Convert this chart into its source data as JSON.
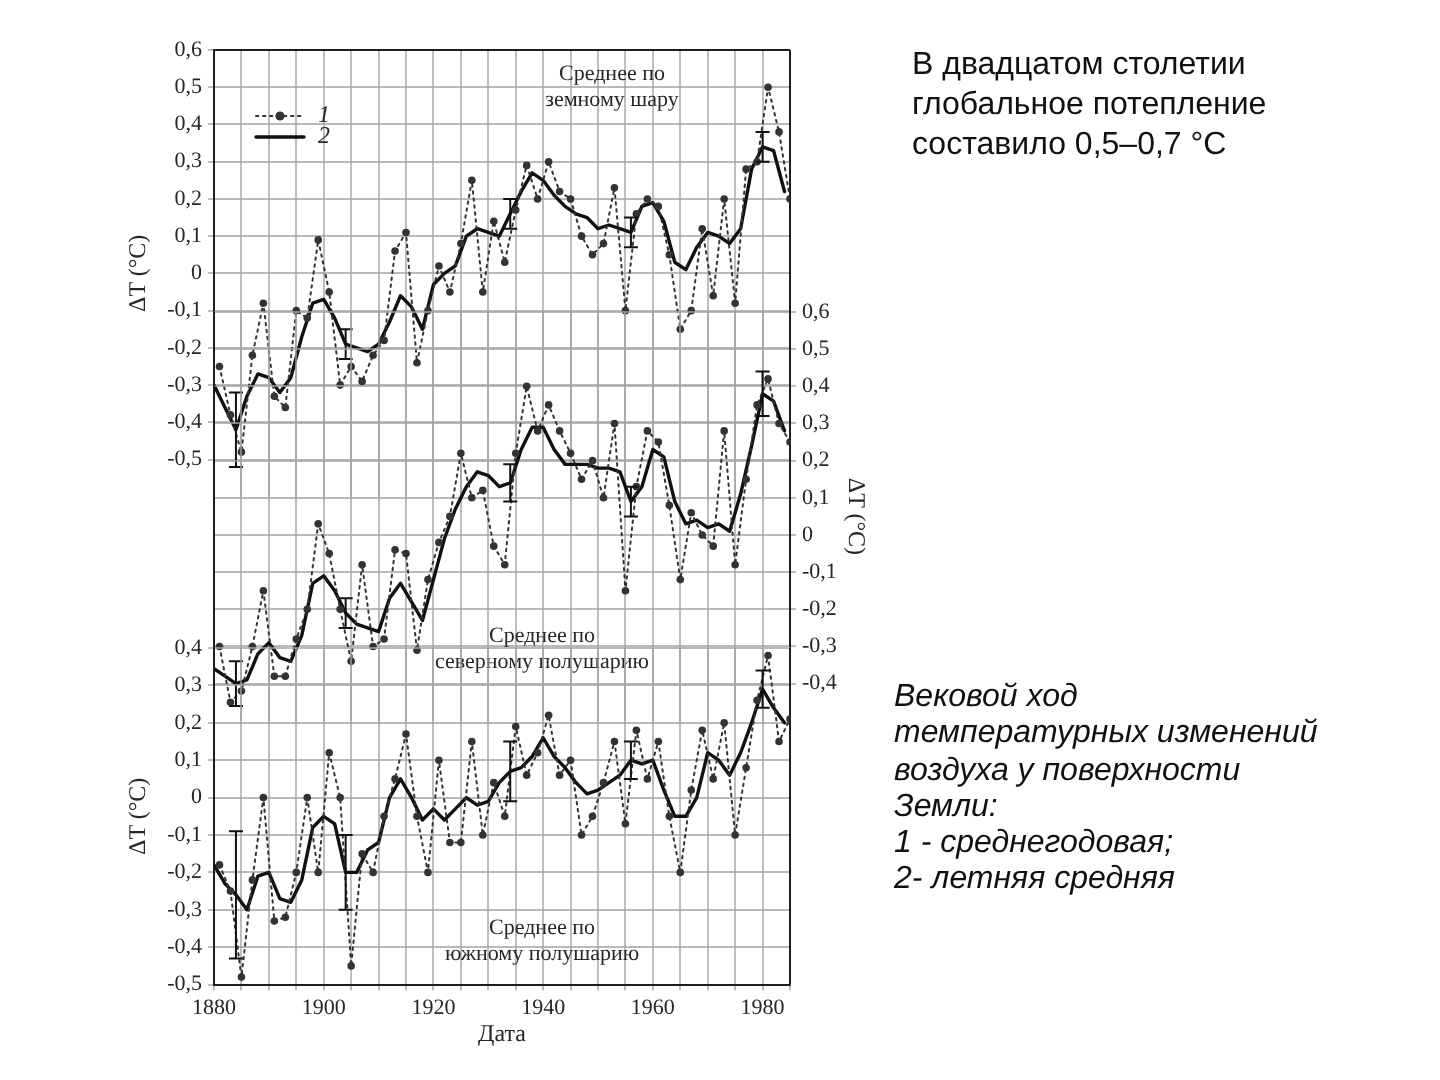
{
  "chart_data": [
    {
      "type": "line",
      "title": "Среднее по\nземному шару",
      "ylabel": "ΔT (°C)",
      "legend": "top left",
      "grid": true,
      "tick_labels": "y",
      "xlim": [
        1880,
        1985
      ],
      "xticks": [
        1880,
        {
          "value": 1885,
          "label": null
        },
        {
          "value": 1890,
          "label": null
        },
        {
          "value": 1895,
          "label": null
        },
        1900,
        {
          "value": 1905,
          "label": null
        },
        {
          "value": 1910,
          "label": null
        },
        {
          "value": 1915,
          "label": null
        },
        1920,
        {
          "value": 1925,
          "label": null
        },
        {
          "value": 1930,
          "label": null
        },
        {
          "value": 1935,
          "label": null
        },
        1940,
        {
          "value": 1945,
          "label": null
        },
        {
          "value": 1950,
          "label": null
        },
        {
          "value": 1955,
          "label": null
        },
        1960,
        {
          "value": 1965,
          "label": null
        },
        {
          "value": 1970,
          "label": null
        },
        {
          "value": 1975,
          "label": null
        },
        1980,
        {
          "value": 1985,
          "label": null
        }
      ],
      "ylim": [
        -0.6,
        0.6
      ],
      "yticks": [
        {
          "value": 0.6,
          "label": "0,6"
        },
        {
          "value": 0.5,
          "label": "0,5"
        },
        {
          "value": 0.4,
          "label": "0,4"
        },
        {
          "value": 0.3,
          "label": "0,3"
        },
        {
          "value": 0.2,
          "label": "0,2"
        },
        {
          "value": 0.1,
          "label": "0,1"
        },
        0,
        {
          "value": -0.1,
          "label": "-0,1"
        },
        {
          "value": -0.2,
          "label": "-0,2"
        },
        {
          "value": -0.3,
          "label": "-0,3"
        },
        {
          "value": -0.4,
          "label": "-0,4"
        },
        {
          "value": -0.5,
          "label": "-0,5"
        }
      ],
      "annotations": [
        "В двадцатом столетии глобальное потепление составило 0,5–0,7 °C",
        "Вековой ход\nтемпературных изменений\nвоздуха у поверхности\nЗемли:\n1 - среднегодовая;\n2- летняя средняя"
      ],
      "series": [
        {
          "name": "1",
          "color": "#333333",
          "marker": "circle",
          "line_style": "dotted",
          "x": [
            1881,
            1883,
            1885,
            1887,
            1889,
            1891,
            1893,
            1895,
            1897,
            1899,
            1901,
            1903,
            1905,
            1907,
            1909,
            1911,
            1913,
            1915,
            1917,
            1919,
            1921,
            1923,
            1925,
            1927,
            1929,
            1931,
            1933,
            1935,
            1937,
            1939,
            1941,
            1943,
            1945,
            1947,
            1949,
            1951,
            1953,
            1955,
            1957,
            1959,
            1961,
            1963,
            1965,
            1967,
            1969,
            1971,
            1973,
            1975,
            1977,
            1979,
            1981,
            1983,
            1985
          ],
          "values": [
            -0.25,
            -0.38,
            -0.48,
            -0.22,
            -0.08,
            -0.33,
            -0.36,
            -0.1,
            -0.12,
            0.09,
            -0.05,
            -0.3,
            -0.25,
            -0.29,
            -0.22,
            -0.18,
            0.06,
            0.11,
            -0.24,
            -0.1,
            0.02,
            -0.05,
            0.08,
            0.25,
            -0.05,
            0.14,
            0.03,
            0.17,
            0.29,
            0.2,
            0.3,
            0.22,
            0.2,
            0.1,
            0.05,
            0.08,
            0.23,
            -0.1,
            0.16,
            0.2,
            0.18,
            0.05,
            -0.15,
            -0.1,
            0.12,
            -0.06,
            0.2,
            -0.08,
            0.28,
            0.3,
            0.5,
            0.38,
            0.2
          ]
        },
        {
          "name": "2",
          "color": "#111111",
          "marker": "none",
          "line_style": "solid",
          "x": [
            1880,
            1882,
            1884,
            1886,
            1888,
            1890,
            1892,
            1894,
            1896,
            1898,
            1900,
            1902,
            1904,
            1906,
            1908,
            1910,
            1912,
            1914,
            1916,
            1918,
            1920,
            1922,
            1924,
            1926,
            1928,
            1930,
            1932,
            1934,
            1936,
            1938,
            1940,
            1942,
            1944,
            1946,
            1948,
            1950,
            1952,
            1954,
            1956,
            1958,
            1960,
            1962,
            1964,
            1966,
            1968,
            1970,
            1972,
            1974,
            1976,
            1978,
            1980,
            1982,
            1984
          ],
          "values": [
            -0.3,
            -0.36,
            -0.42,
            -0.33,
            -0.27,
            -0.28,
            -0.32,
            -0.28,
            -0.17,
            -0.08,
            -0.07,
            -0.12,
            -0.19,
            -0.2,
            -0.21,
            -0.19,
            -0.13,
            -0.06,
            -0.09,
            -0.15,
            -0.03,
            0.0,
            0.02,
            0.1,
            0.12,
            0.11,
            0.1,
            0.16,
            0.22,
            0.27,
            0.25,
            0.21,
            0.18,
            0.16,
            0.15,
            0.12,
            0.13,
            0.12,
            0.11,
            0.18,
            0.19,
            0.14,
            0.03,
            0.01,
            0.07,
            0.11,
            0.1,
            0.08,
            0.12,
            0.28,
            0.34,
            0.33,
            0.22
          ],
          "errors": [
            null,
            null,
            0.1,
            null,
            null,
            null,
            null,
            null,
            null,
            null,
            null,
            null,
            0.04,
            null,
            null,
            null,
            null,
            null,
            null,
            null,
            null,
            null,
            null,
            null,
            null,
            null,
            null,
            0.04,
            null,
            null,
            null,
            null,
            null,
            null,
            null,
            null,
            null,
            null,
            0.04,
            null,
            null,
            null,
            null,
            null,
            null,
            null,
            null,
            null,
            null,
            null,
            0.04,
            null,
            null
          ]
        }
      ]
    },
    {
      "type": "line",
      "title": "Среднее по\nсеверному полушарию",
      "y2label": "ΔT (°C)",
      "grid": true,
      "tick_labels": "y",
      "xlim": [
        1880,
        1985
      ],
      "xticks": [
        1880,
        {
          "value": 1885,
          "label": null
        },
        {
          "value": 1890,
          "label": null
        },
        {
          "value": 1895,
          "label": null
        },
        1900,
        {
          "value": 1905,
          "label": null
        },
        {
          "value": 1910,
          "label": null
        },
        {
          "value": 1915,
          "label": null
        },
        1920,
        {
          "value": 1925,
          "label": null
        },
        {
          "value": 1930,
          "label": null
        },
        {
          "value": 1935,
          "label": null
        },
        1940,
        {
          "value": 1945,
          "label": null
        },
        {
          "value": 1950,
          "label": null
        },
        {
          "value": 1955,
          "label": null
        },
        1960,
        {
          "value": 1965,
          "label": null
        },
        {
          "value": 1970,
          "label": null
        },
        {
          "value": 1975,
          "label": null
        },
        1980,
        {
          "value": 1985,
          "label": null
        }
      ],
      "y2lim": [
        -0.5,
        0.6
      ],
      "y2ticks": [
        {
          "value": 0.6,
          "label": "0,6"
        },
        {
          "value": 0.5,
          "label": "0,5"
        },
        {
          "value": 0.4,
          "label": "0,4"
        },
        {
          "value": 0.3,
          "label": "0,3"
        },
        {
          "value": 0.2,
          "label": "0,2"
        },
        {
          "value": 0.1,
          "label": "0,1"
        },
        0,
        {
          "value": -0.1,
          "label": "-0,1"
        },
        {
          "value": -0.2,
          "label": "-0,2"
        },
        {
          "value": -0.3,
          "label": "-0,3"
        },
        {
          "value": -0.4,
          "label": "-0,4"
        }
      ],
      "series": [
        {
          "color": "#333333",
          "marker": "circle",
          "line_style": "dotted",
          "axis": "y2",
          "x": [
            1881,
            1883,
            1885,
            1887,
            1889,
            1891,
            1893,
            1895,
            1897,
            1899,
            1901,
            1903,
            1905,
            1907,
            1909,
            1911,
            1913,
            1915,
            1917,
            1919,
            1921,
            1923,
            1925,
            1927,
            1929,
            1931,
            1933,
            1935,
            1937,
            1939,
            1941,
            1943,
            1945,
            1947,
            1949,
            1951,
            1953,
            1955,
            1957,
            1959,
            1961,
            1963,
            1965,
            1967,
            1969,
            1971,
            1973,
            1975,
            1977,
            1979,
            1981,
            1983,
            1985
          ],
          "values": [
            -0.3,
            -0.45,
            -0.42,
            -0.3,
            -0.15,
            -0.38,
            -0.38,
            -0.28,
            -0.2,
            0.03,
            -0.05,
            -0.2,
            -0.34,
            -0.08,
            -0.3,
            -0.28,
            -0.04,
            -0.05,
            -0.31,
            -0.12,
            -0.02,
            0.05,
            0.22,
            0.1,
            0.12,
            -0.03,
            -0.08,
            0.22,
            0.4,
            0.28,
            0.35,
            0.28,
            0.22,
            0.15,
            0.2,
            0.1,
            0.3,
            -0.15,
            0.13,
            0.28,
            0.25,
            0.08,
            -0.12,
            0.06,
            0.0,
            -0.03,
            0.28,
            -0.08,
            0.15,
            0.35,
            0.42,
            0.3,
            0.25
          ]
        },
        {
          "color": "#111111",
          "marker": "none",
          "line_style": "solid",
          "axis": "y2",
          "x": [
            1880,
            1882,
            1884,
            1886,
            1888,
            1890,
            1892,
            1894,
            1896,
            1898,
            1900,
            1902,
            1904,
            1906,
            1908,
            1910,
            1912,
            1914,
            1916,
            1918,
            1920,
            1922,
            1924,
            1926,
            1928,
            1930,
            1932,
            1934,
            1936,
            1938,
            1940,
            1942,
            1944,
            1946,
            1948,
            1950,
            1952,
            1954,
            1956,
            1958,
            1960,
            1962,
            1964,
            1966,
            1968,
            1970,
            1972,
            1974,
            1976,
            1978,
            1980,
            1982,
            1984
          ],
          "values": [
            -0.36,
            -0.38,
            -0.4,
            -0.39,
            -0.32,
            -0.29,
            -0.33,
            -0.34,
            -0.27,
            -0.13,
            -0.11,
            -0.15,
            -0.21,
            -0.24,
            -0.25,
            -0.26,
            -0.17,
            -0.13,
            -0.18,
            -0.23,
            -0.12,
            -0.01,
            0.07,
            0.13,
            0.17,
            0.16,
            0.13,
            0.14,
            0.23,
            0.29,
            0.29,
            0.23,
            0.19,
            0.19,
            0.19,
            0.18,
            0.18,
            0.17,
            0.09,
            0.13,
            0.23,
            0.21,
            0.09,
            0.03,
            0.04,
            0.02,
            0.03,
            0.01,
            0.11,
            0.24,
            0.38,
            0.36,
            0.28
          ],
          "errors": [
            null,
            null,
            0.06,
            null,
            null,
            null,
            null,
            null,
            null,
            null,
            null,
            null,
            0.04,
            null,
            null,
            null,
            null,
            null,
            null,
            null,
            null,
            null,
            null,
            null,
            null,
            null,
            null,
            0.05,
            null,
            null,
            null,
            null,
            null,
            null,
            null,
            null,
            null,
            null,
            0.04,
            null,
            null,
            null,
            null,
            null,
            null,
            null,
            null,
            null,
            null,
            null,
            0.06,
            null,
            null
          ]
        }
      ]
    },
    {
      "type": "line",
      "title": "Среднее по\nюжному полушарию",
      "ylabel": "ΔT (°C)",
      "xlabel": "Дата",
      "grid": true,
      "xlim": [
        1880,
        1985
      ],
      "xticks": [
        1880,
        {
          "value": 1885,
          "label": null
        },
        {
          "value": 1890,
          "label": null
        },
        {
          "value": 1895,
          "label": null
        },
        1900,
        {
          "value": 1905,
          "label": null
        },
        {
          "value": 1910,
          "label": null
        },
        {
          "value": 1915,
          "label": null
        },
        1920,
        {
          "value": 1925,
          "label": null
        },
        {
          "value": 1930,
          "label": null
        },
        {
          "value": 1935,
          "label": null
        },
        1940,
        {
          "value": 1945,
          "label": null
        },
        {
          "value": 1950,
          "label": null
        },
        {
          "value": 1955,
          "label": null
        },
        1960,
        {
          "value": 1965,
          "label": null
        },
        {
          "value": 1970,
          "label": null
        },
        {
          "value": 1975,
          "label": null
        },
        1980,
        {
          "value": 1985,
          "label": null
        }
      ],
      "ylim": [
        -0.5,
        0.4
      ],
      "yticks": [
        {
          "value": 0.4,
          "label": "0,4"
        },
        {
          "value": 0.3,
          "label": "0,3"
        },
        {
          "value": 0.2,
          "label": "0,2"
        },
        {
          "value": 0.1,
          "label": "0,1"
        },
        0,
        {
          "value": -0.1,
          "label": "-0,1"
        },
        {
          "value": -0.2,
          "label": "-0,2"
        },
        {
          "value": -0.3,
          "label": "-0,3"
        },
        {
          "value": -0.4,
          "label": "-0,4"
        },
        {
          "value": -0.5,
          "label": "-0,5"
        }
      ],
      "series": [
        {
          "color": "#333333",
          "marker": "circle",
          "line_style": "dotted",
          "x": [
            1881,
            1883,
            1885,
            1887,
            1889,
            1891,
            1893,
            1895,
            1897,
            1899,
            1901,
            1903,
            1905,
            1907,
            1909,
            1911,
            1913,
            1915,
            1917,
            1919,
            1921,
            1923,
            1925,
            1927,
            1929,
            1931,
            1933,
            1935,
            1937,
            1939,
            1941,
            1943,
            1945,
            1947,
            1949,
            1951,
            1953,
            1955,
            1957,
            1959,
            1961,
            1963,
            1965,
            1967,
            1969,
            1971,
            1973,
            1975,
            1977,
            1979,
            1981,
            1983,
            1985
          ],
          "values": [
            -0.18,
            -0.25,
            -0.48,
            -0.22,
            0.0,
            -0.33,
            -0.32,
            -0.2,
            0.0,
            -0.2,
            0.12,
            0.0,
            -0.45,
            -0.15,
            -0.2,
            -0.05,
            0.05,
            0.17,
            -0.05,
            -0.2,
            0.1,
            -0.12,
            -0.12,
            0.15,
            -0.1,
            0.04,
            -0.05,
            0.19,
            0.06,
            0.12,
            0.22,
            0.06,
            0.1,
            -0.1,
            -0.05,
            0.04,
            0.15,
            -0.07,
            0.18,
            0.05,
            0.15,
            -0.05,
            -0.2,
            0.02,
            0.18,
            0.05,
            0.2,
            -0.1,
            0.08,
            0.26,
            0.38,
            0.15,
            0.21
          ]
        },
        {
          "color": "#111111",
          "marker": "none",
          "line_style": "solid",
          "x": [
            1880,
            1882,
            1884,
            1886,
            1888,
            1890,
            1892,
            1894,
            1896,
            1898,
            1900,
            1902,
            1904,
            1906,
            1908,
            1910,
            1912,
            1914,
            1916,
            1918,
            1920,
            1922,
            1924,
            1926,
            1928,
            1930,
            1932,
            1934,
            1936,
            1938,
            1940,
            1942,
            1944,
            1946,
            1948,
            1950,
            1952,
            1954,
            1956,
            1958,
            1960,
            1962,
            1964,
            1966,
            1968,
            1970,
            1972,
            1974,
            1976,
            1978,
            1980,
            1982,
            1984
          ],
          "values": [
            -0.18,
            -0.23,
            -0.26,
            -0.3,
            -0.21,
            -0.2,
            -0.27,
            -0.28,
            -0.22,
            -0.08,
            -0.05,
            -0.07,
            -0.2,
            -0.2,
            -0.14,
            -0.12,
            0.0,
            0.05,
            0.0,
            -0.06,
            -0.03,
            -0.06,
            -0.03,
            0.0,
            -0.02,
            -0.01,
            0.04,
            0.07,
            0.08,
            0.11,
            0.16,
            0.11,
            0.08,
            0.04,
            0.01,
            0.02,
            0.04,
            0.06,
            0.1,
            0.09,
            0.1,
            0.02,
            -0.05,
            -0.05,
            0.0,
            0.12,
            0.1,
            0.06,
            0.12,
            0.2,
            0.29,
            0.24,
            0.2
          ],
          "errors": [
            null,
            null,
            0.17,
            null,
            null,
            null,
            null,
            null,
            null,
            null,
            null,
            null,
            0.1,
            null,
            null,
            null,
            null,
            null,
            null,
            null,
            null,
            null,
            null,
            null,
            null,
            null,
            null,
            0.08,
            null,
            null,
            null,
            null,
            null,
            null,
            null,
            null,
            null,
            null,
            0.05,
            null,
            null,
            null,
            null,
            null,
            null,
            null,
            null,
            null,
            null,
            null,
            0.05,
            null,
            null
          ]
        }
      ]
    }
  ]
}
